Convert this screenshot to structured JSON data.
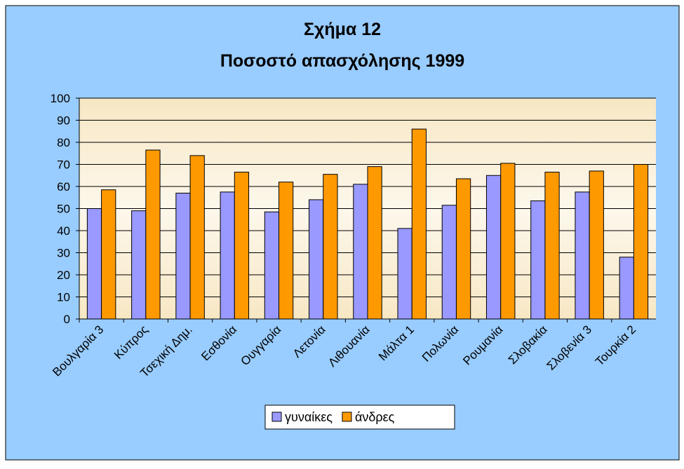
{
  "chart_data": {
    "type": "bar",
    "title": "Σχήμα 12",
    "subtitle": "Ποσοστό απασχόλησης 1999",
    "categories": [
      "Βουλγαρία 3",
      "Κύπρος",
      "Τσεχική Δημ.",
      "Εσθονία",
      "Ουγγαρία",
      "Λετονία",
      "Λιθουανία",
      "Μάλτα 1",
      "Πολωνία",
      "Ρουμανία",
      "Σλοβακία",
      "Σλοβενία 3",
      "Τουρκία 2"
    ],
    "series": [
      {
        "name": "γυναίκες",
        "color": "#9999ff",
        "values": [
          50,
          49,
          57,
          57.5,
          48.5,
          54,
          61,
          41,
          51.5,
          65,
          53.5,
          57.5,
          28
        ]
      },
      {
        "name": "άνδρες",
        "color": "#ff9900",
        "values": [
          58.5,
          76.5,
          74,
          66.5,
          62,
          65.5,
          69,
          86,
          63.5,
          70.5,
          66.5,
          67,
          70
        ]
      }
    ],
    "ylim": [
      0,
      100
    ],
    "yticks": [
      0,
      10,
      20,
      30,
      40,
      50,
      60,
      70,
      80,
      90,
      100
    ],
    "grid": true,
    "legend": "bottom"
  }
}
